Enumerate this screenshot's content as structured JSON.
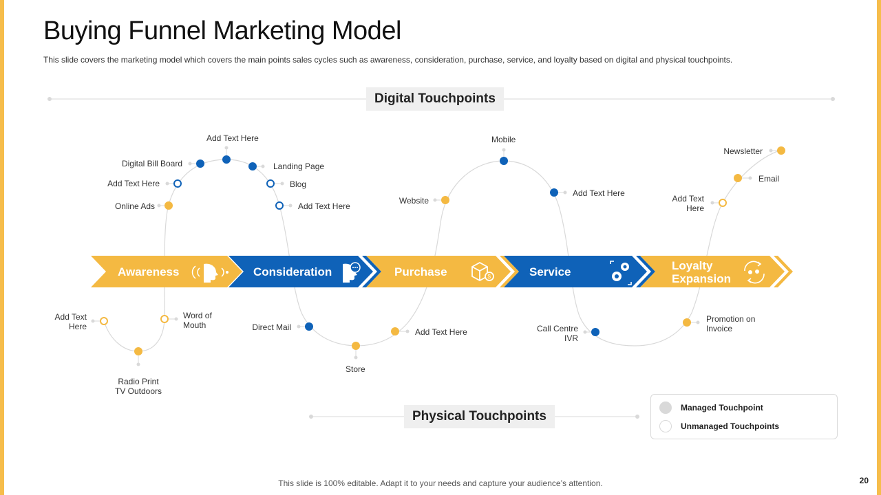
{
  "slide": {
    "title": "Buying Funnel Marketing Model",
    "subtitle": "This slide covers the marketing model which covers the main points sales cycles such as awareness, consideration, purchase, service, and loyalty based on digital and physical touchpoints.",
    "footer": "This slide is 100% editable. Adapt it to your needs and capture your audience’s attention.",
    "page_number": "20"
  },
  "sections": {
    "digital": "Digital Touchpoints",
    "physical": "Physical Touchpoints"
  },
  "stages": [
    {
      "label": "Awareness",
      "color": "#F4B942",
      "icon": "head-signal-icon"
    },
    {
      "label": "Consideration",
      "color": "#0F62B8",
      "icon": "head-thought-icon"
    },
    {
      "label": "Purchase",
      "color": "#F4B942",
      "icon": "box-coin-icon"
    },
    {
      "label": "Service",
      "color": "#0F62B8",
      "icon": "gears-icon"
    },
    {
      "label": "Loyalty Expansion",
      "label_line1": "Loyalty",
      "label_line2": "Expansion",
      "color": "#F4B942",
      "icon": "loyalty-cycle-icon"
    }
  ],
  "touchpoints": {
    "digital_bill_board": "Digital Bill Board",
    "add_text_top": "Add Text Here",
    "landing_page": "Landing Page",
    "add_text_left": "Add Text Here",
    "blog": "Blog",
    "online_ads": "Online Ads",
    "add_text_right": "Add Text Here",
    "mobile": "Mobile",
    "website": "Website",
    "add_text_service": "Add Text Here",
    "newsletter": "Newsletter",
    "email": "Email",
    "add_text_loyalty_1": "Add Text",
    "add_text_loyalty_2": "Here",
    "add_text_phys_1": "Add Text",
    "add_text_phys_2": "Here",
    "word_of_mouth_1": "Word of",
    "word_of_mouth_2": "Mouth",
    "radio_print_1": "Radio Print",
    "radio_print_2": "TV Outdoors",
    "direct_mail": "Direct Mail",
    "store": "Store",
    "add_text_purchase": "Add Text Here",
    "call_centre_1": "Call Centre",
    "call_centre_2": "IVR",
    "promotion_1": "Promotion on",
    "promotion_2": "Invoice"
  },
  "legend": {
    "managed": "Managed Touchpoint",
    "unmanaged": "Unmanaged Touchpoints"
  },
  "colors": {
    "yellow": "#F4B942",
    "blue": "#0F62B8",
    "frame": "#F6BD4B",
    "curve": "#D9D9D9"
  }
}
